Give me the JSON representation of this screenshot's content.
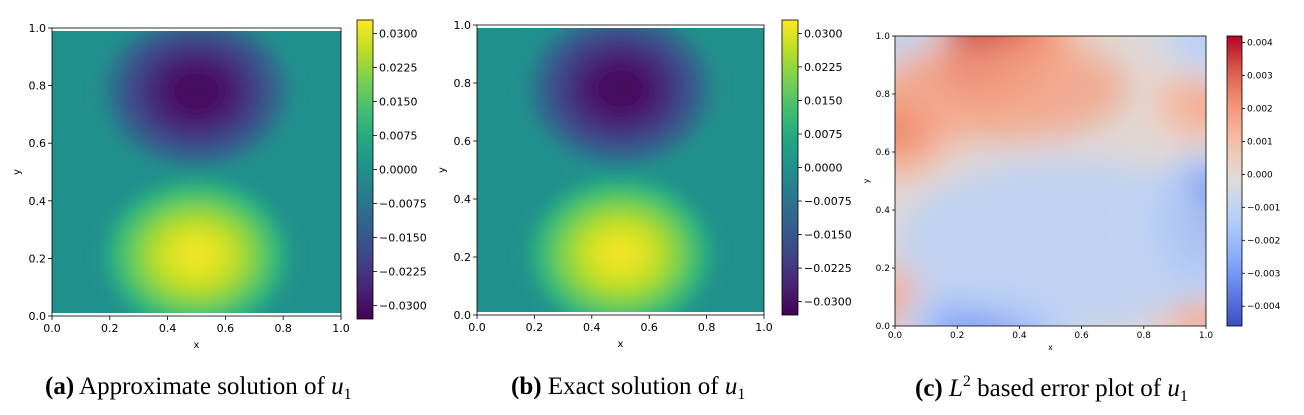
{
  "chart_data": [
    {
      "type": "heatmap",
      "panel": "a",
      "colormap": "viridis",
      "xlabel": "x",
      "ylabel": "y",
      "xlim": [
        0.0,
        1.0
      ],
      "ylim": [
        0.0,
        1.0
      ],
      "xticks": [
        "0.0",
        "0.2",
        "0.4",
        "0.6",
        "0.8",
        "1.0"
      ],
      "yticks": [
        "0.0",
        "0.2",
        "0.4",
        "0.6",
        "0.8",
        "1.0"
      ],
      "colorbar_range": [
        -0.033,
        0.033
      ],
      "colorbar_ticks": [
        "0.0300",
        "0.0225",
        "0.0150",
        "0.0075",
        "0.0000",
        "−0.0075",
        "−0.0150",
        "−0.0225",
        "−0.0300"
      ],
      "colorbar_tick_values": [
        0.03,
        0.0225,
        0.015,
        0.0075,
        0.0,
        -0.0075,
        -0.015,
        -0.0225,
        -0.03
      ],
      "features": [
        {
          "kind": "minimum",
          "x": 0.5,
          "y": 0.78,
          "value": -0.032
        },
        {
          "kind": "maximum",
          "x": 0.5,
          "y": 0.21,
          "value": 0.032
        }
      ],
      "caption_label": "(a)",
      "caption_text": "Approximate solution of",
      "caption_var": "u",
      "caption_sub": "1"
    },
    {
      "type": "heatmap",
      "panel": "b",
      "colormap": "viridis",
      "xlabel": "x",
      "ylabel": "y",
      "xlim": [
        0.0,
        1.0
      ],
      "ylim": [
        0.0,
        1.0
      ],
      "xticks": [
        "0.0",
        "0.2",
        "0.4",
        "0.6",
        "0.8",
        "1.0"
      ],
      "yticks": [
        "0.0",
        "0.2",
        "0.4",
        "0.6",
        "0.8",
        "1.0"
      ],
      "colorbar_range": [
        -0.033,
        0.033
      ],
      "colorbar_ticks": [
        "0.0300",
        "0.0225",
        "0.0150",
        "0.0075",
        "0.0000",
        "−0.0075",
        "−0.0150",
        "−0.0225",
        "−0.0300"
      ],
      "colorbar_tick_values": [
        0.03,
        0.0225,
        0.015,
        0.0075,
        0.0,
        -0.0075,
        -0.015,
        -0.0225,
        -0.03
      ],
      "features": [
        {
          "kind": "minimum",
          "x": 0.5,
          "y": 0.78,
          "value": -0.032
        },
        {
          "kind": "maximum",
          "x": 0.5,
          "y": 0.21,
          "value": 0.032
        }
      ],
      "caption_label": "(b)",
      "caption_text": "Exact solution of",
      "caption_var": "u",
      "caption_sub": "1"
    },
    {
      "type": "heatmap",
      "panel": "c",
      "colormap": "coolwarm",
      "xlabel": "x",
      "ylabel": "y",
      "xlim": [
        0.0,
        1.0
      ],
      "ylim": [
        0.0,
        1.0
      ],
      "xticks": [
        "0.0",
        "0.2",
        "0.4",
        "0.6",
        "0.8",
        "1.0"
      ],
      "yticks": [
        "0.0",
        "0.2",
        "0.4",
        "0.6",
        "0.8",
        "1.0"
      ],
      "colorbar_range": [
        -0.0046,
        0.0042
      ],
      "colorbar_ticks": [
        "0.004",
        "0.003",
        "0.002",
        "0.001",
        "0.000",
        "−0.001",
        "−0.002",
        "−0.003",
        "−0.004"
      ],
      "colorbar_tick_values": [
        0.004,
        0.003,
        0.002,
        0.001,
        0.0,
        -0.001,
        -0.002,
        -0.003,
        -0.004
      ],
      "features": [
        {
          "kind": "maximum",
          "x": 0.2,
          "y": 1.0,
          "value": 0.0042
        },
        {
          "kind": "high",
          "x": 0.0,
          "y": 0.68,
          "value": 0.0025
        },
        {
          "kind": "high",
          "x": 1.0,
          "y": 0.78,
          "value": 0.0018
        },
        {
          "kind": "high",
          "x": 0.0,
          "y": 0.05,
          "value": 0.0022
        },
        {
          "kind": "high",
          "x": 1.0,
          "y": 0.05,
          "value": 0.0018
        },
        {
          "kind": "minimum",
          "x": 1.0,
          "y": 0.35,
          "value": -0.0046
        },
        {
          "kind": "low",
          "x": 0.3,
          "y": 0.0,
          "value": -0.0035
        },
        {
          "kind": "low",
          "x": 1.0,
          "y": 1.0,
          "value": -0.0015
        },
        {
          "kind": "low",
          "x": 0.0,
          "y": 1.0,
          "value": -0.0012
        }
      ],
      "caption_label": "(c)",
      "caption_var_L": "L",
      "caption_sup": "2",
      "caption_text": "based error plot of",
      "caption_var": "u",
      "caption_sub": "1"
    }
  ]
}
